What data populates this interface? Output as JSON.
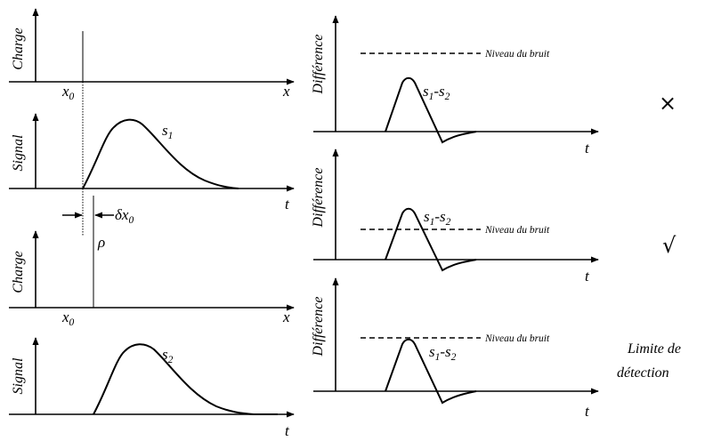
{
  "left_panels": {
    "charge_top": {
      "ylabel": "Charge",
      "tick_label": "x",
      "tick_sub": "0",
      "xlabel": "x"
    },
    "signal_top": {
      "ylabel": "Signal",
      "series_label": "s",
      "series_sub": "1",
      "xlabel": "t"
    },
    "offset": {
      "delta_label": "δx",
      "delta_sub": "0",
      "rho_label": "ρ"
    },
    "charge_bottom": {
      "ylabel": "Charge",
      "tick_label": "x",
      "tick_sub": "0",
      "xlabel": "x"
    },
    "signal_bottom": {
      "ylabel": "Signal",
      "series_label": "s",
      "series_sub": "2",
      "xlabel": "t"
    }
  },
  "right_panels": [
    {
      "ylabel": "Différence",
      "noise_label": "Niveau du bruit",
      "diff_a": "s",
      "diff_a_sub": "1",
      "diff_sep": "-",
      "diff_b": "s",
      "diff_b_sub": "2",
      "xlabel": "t",
      "mark": "×"
    },
    {
      "ylabel": "Différence",
      "noise_label": "Niveau du bruit",
      "diff_a": "s",
      "diff_a_sub": "1",
      "diff_sep": "-",
      "diff_b": "s",
      "diff_b_sub": "2",
      "xlabel": "t",
      "mark": "√"
    },
    {
      "ylabel": "Différence",
      "noise_label": "Niveau du bruit",
      "diff_a": "s",
      "diff_a_sub": "1",
      "diff_sep": "-",
      "diff_b": "s",
      "diff_b_sub": "2",
      "xlabel": "t",
      "mark_line1": "Limite de",
      "mark_line2": "détection"
    }
  ]
}
